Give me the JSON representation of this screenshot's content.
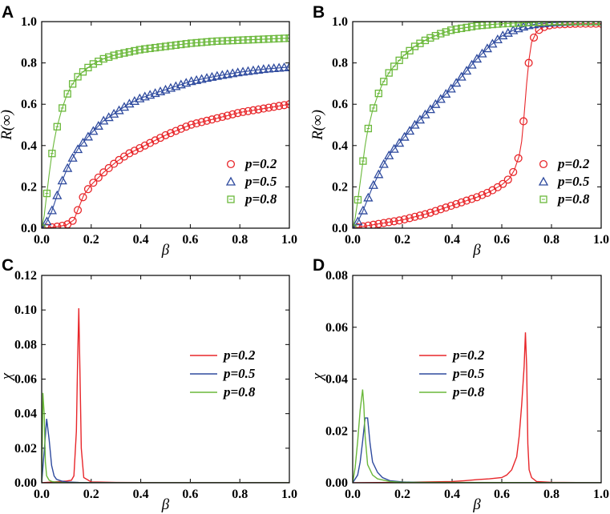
{
  "chart_data": [
    {
      "panel": "A",
      "type": "scatter",
      "xlabel": "β",
      "ylabel": "R(∞)",
      "xlim": [
        0,
        1
      ],
      "ylim": [
        0,
        1
      ],
      "xticks": [
        "0.0",
        "0.2",
        "0.4",
        "0.6",
        "0.8",
        "1.0"
      ],
      "yticks": [
        "0.0",
        "0.2",
        "0.4",
        "0.6",
        "0.8",
        "1.0"
      ],
      "legend": "center-right",
      "series": [
        {
          "name": "p=0.2",
          "color": "#e8262a",
          "marker": "circle",
          "x": [
            0,
            0.05,
            0.1,
            0.13,
            0.15,
            0.17,
            0.2,
            0.25,
            0.3,
            0.35,
            0.4,
            0.45,
            0.5,
            0.6,
            0.7,
            0.8,
            0.9,
            1.0
          ],
          "y": [
            0,
            0.005,
            0.015,
            0.04,
            0.1,
            0.16,
            0.21,
            0.27,
            0.32,
            0.36,
            0.39,
            0.42,
            0.45,
            0.5,
            0.53,
            0.56,
            0.58,
            0.6
          ]
        },
        {
          "name": "p=0.5",
          "color": "#2e4a9e",
          "marker": "triangle",
          "x": [
            0,
            0.02,
            0.04,
            0.06,
            0.08,
            0.1,
            0.12,
            0.15,
            0.2,
            0.25,
            0.3,
            0.35,
            0.4,
            0.5,
            0.6,
            0.7,
            0.8,
            0.9,
            1.0
          ],
          "y": [
            0,
            0.03,
            0.08,
            0.15,
            0.22,
            0.28,
            0.33,
            0.39,
            0.46,
            0.52,
            0.56,
            0.6,
            0.63,
            0.67,
            0.71,
            0.735,
            0.755,
            0.77,
            0.78
          ]
        },
        {
          "name": "p=0.8",
          "color": "#6ab83a",
          "marker": "square",
          "x": [
            0,
            0.01,
            0.02,
            0.03,
            0.04,
            0.05,
            0.06,
            0.08,
            0.1,
            0.12,
            0.15,
            0.2,
            0.25,
            0.3,
            0.4,
            0.5,
            0.6,
            0.7,
            0.8,
            0.9,
            1.0
          ],
          "y": [
            0,
            0.06,
            0.16,
            0.26,
            0.35,
            0.42,
            0.48,
            0.57,
            0.64,
            0.69,
            0.74,
            0.79,
            0.82,
            0.84,
            0.865,
            0.88,
            0.895,
            0.905,
            0.91,
            0.915,
            0.92
          ]
        }
      ]
    },
    {
      "panel": "B",
      "type": "scatter",
      "xlabel": "β",
      "ylabel": "R(∞)",
      "xlim": [
        0,
        1
      ],
      "ylim": [
        0,
        1
      ],
      "xticks": [
        "0.0",
        "0.2",
        "0.4",
        "0.6",
        "0.8",
        "1.0"
      ],
      "yticks": [
        "0.0",
        "0.2",
        "0.4",
        "0.6",
        "0.8",
        "1.0"
      ],
      "legend": "center-right",
      "series": [
        {
          "name": "p=0.2",
          "color": "#e8262a",
          "marker": "circle",
          "x": [
            0,
            0.05,
            0.1,
            0.15,
            0.2,
            0.25,
            0.3,
            0.35,
            0.4,
            0.45,
            0.5,
            0.55,
            0.6,
            0.63,
            0.65,
            0.67,
            0.68,
            0.69,
            0.7,
            0.71,
            0.72,
            0.74,
            0.76,
            0.8,
            0.9,
            1.0
          ],
          "y": [
            0,
            0.01,
            0.02,
            0.03,
            0.04,
            0.055,
            0.07,
            0.09,
            0.11,
            0.13,
            0.15,
            0.175,
            0.21,
            0.24,
            0.28,
            0.35,
            0.42,
            0.55,
            0.7,
            0.82,
            0.9,
            0.95,
            0.97,
            0.985,
            0.99,
            0.99
          ]
        },
        {
          "name": "p=0.5",
          "color": "#2e4a9e",
          "marker": "triangle",
          "x": [
            0,
            0.02,
            0.04,
            0.06,
            0.08,
            0.1,
            0.12,
            0.15,
            0.2,
            0.25,
            0.3,
            0.35,
            0.4,
            0.45,
            0.5,
            0.55,
            0.6,
            0.65,
            0.7,
            0.75,
            0.8,
            0.9,
            1.0
          ],
          "y": [
            0,
            0.03,
            0.08,
            0.14,
            0.2,
            0.25,
            0.3,
            0.36,
            0.43,
            0.5,
            0.56,
            0.62,
            0.68,
            0.75,
            0.82,
            0.88,
            0.93,
            0.96,
            0.98,
            0.99,
            0.995,
            1.0,
            1.0
          ]
        },
        {
          "name": "p=0.8",
          "color": "#6ab83a",
          "marker": "square",
          "x": [
            0,
            0.01,
            0.02,
            0.03,
            0.04,
            0.05,
            0.06,
            0.08,
            0.1,
            0.12,
            0.15,
            0.2,
            0.25,
            0.3,
            0.35,
            0.4,
            0.5,
            0.6,
            0.7,
            0.8,
            0.9,
            1.0
          ],
          "y": [
            0,
            0.05,
            0.13,
            0.22,
            0.31,
            0.4,
            0.47,
            0.57,
            0.64,
            0.7,
            0.76,
            0.83,
            0.88,
            0.915,
            0.94,
            0.96,
            0.98,
            0.99,
            0.995,
            1.0,
            1.0,
            1.0
          ]
        }
      ]
    },
    {
      "panel": "C",
      "type": "line",
      "xlabel": "β",
      "ylabel": "χ",
      "xlim": [
        0,
        1
      ],
      "ylim": [
        0,
        0.12
      ],
      "xticks": [
        "0.0",
        "0.2",
        "0.4",
        "0.6",
        "0.8",
        "1.0"
      ],
      "yticks": [
        "0.00",
        "0.02",
        "0.04",
        "0.06",
        "0.08",
        "0.10",
        "0.12"
      ],
      "legend": "center-right",
      "series": [
        {
          "name": "p=0.2",
          "color": "#e8262a",
          "x": [
            0,
            0.05,
            0.1,
            0.12,
            0.13,
            0.14,
            0.145,
            0.15,
            0.155,
            0.16,
            0.17,
            0.2,
            0.3,
            0.5,
            0.7,
            1.0
          ],
          "y": [
            0,
            0.0005,
            0.001,
            0.0015,
            0.004,
            0.03,
            0.07,
            0.101,
            0.06,
            0.02,
            0.003,
            0.0005,
            0.0002,
            0.0001,
            0.0001,
            0.0001
          ]
        },
        {
          "name": "p=0.5",
          "color": "#2e4a9e",
          "x": [
            0,
            0.01,
            0.02,
            0.03,
            0.04,
            0.05,
            0.06,
            0.08,
            0.1,
            0.15,
            0.2,
            0.4,
            1.0
          ],
          "y": [
            0,
            0.018,
            0.037,
            0.025,
            0.01,
            0.004,
            0.002,
            0.001,
            0.0005,
            0.0002,
            0.0001,
            0,
            0
          ]
        },
        {
          "name": "p=0.8",
          "color": "#6ab83a",
          "x": [
            0,
            0.005,
            0.01,
            0.015,
            0.02,
            0.03,
            0.04,
            0.05,
            0.08,
            0.1,
            0.2,
            1.0
          ],
          "y": [
            0,
            0.052,
            0.04,
            0.012,
            0.004,
            0.0015,
            0.0008,
            0.0005,
            0.0002,
            0.0001,
            0,
            0
          ]
        }
      ]
    },
    {
      "panel": "D",
      "type": "line",
      "xlabel": "β",
      "ylabel": "χ",
      "xlim": [
        0,
        1
      ],
      "ylim": [
        0,
        0.08
      ],
      "xticks": [
        "0.0",
        "0.2",
        "0.4",
        "0.6",
        "0.8",
        "1.0"
      ],
      "yticks": [
        "0.00",
        "0.02",
        "0.04",
        "0.06",
        "0.08"
      ],
      "legend": "center-right",
      "series": [
        {
          "name": "p=0.2",
          "color": "#e8262a",
          "x": [
            0,
            0.2,
            0.4,
            0.45,
            0.5,
            0.55,
            0.6,
            0.62,
            0.64,
            0.66,
            0.67,
            0.68,
            0.69,
            0.695,
            0.7,
            0.705,
            0.71,
            0.72,
            0.74,
            0.8,
            1.0
          ],
          "y": [
            0,
            0.0002,
            0.0005,
            0.0008,
            0.0012,
            0.0015,
            0.002,
            0.003,
            0.005,
            0.01,
            0.018,
            0.03,
            0.045,
            0.058,
            0.045,
            0.015,
            0.005,
            0.002,
            0.0005,
            0.0002,
            0
          ]
        },
        {
          "name": "p=0.5",
          "color": "#2e4a9e",
          "x": [
            0,
            0.02,
            0.03,
            0.04,
            0.05,
            0.06,
            0.07,
            0.08,
            0.1,
            0.12,
            0.15,
            0.2,
            0.3,
            1.0
          ],
          "y": [
            0,
            0.003,
            0.008,
            0.016,
            0.025,
            0.025,
            0.015,
            0.008,
            0.004,
            0.002,
            0.0008,
            0.0003,
            0.0001,
            0
          ]
        },
        {
          "name": "p=0.8",
          "color": "#6ab83a",
          "x": [
            0,
            0.01,
            0.02,
            0.03,
            0.04,
            0.045,
            0.05,
            0.06,
            0.08,
            0.1,
            0.15,
            0.2,
            1.0
          ],
          "y": [
            0,
            0.006,
            0.016,
            0.028,
            0.036,
            0.03,
            0.018,
            0.007,
            0.003,
            0.0015,
            0.0005,
            0.0002,
            0
          ]
        }
      ]
    }
  ]
}
